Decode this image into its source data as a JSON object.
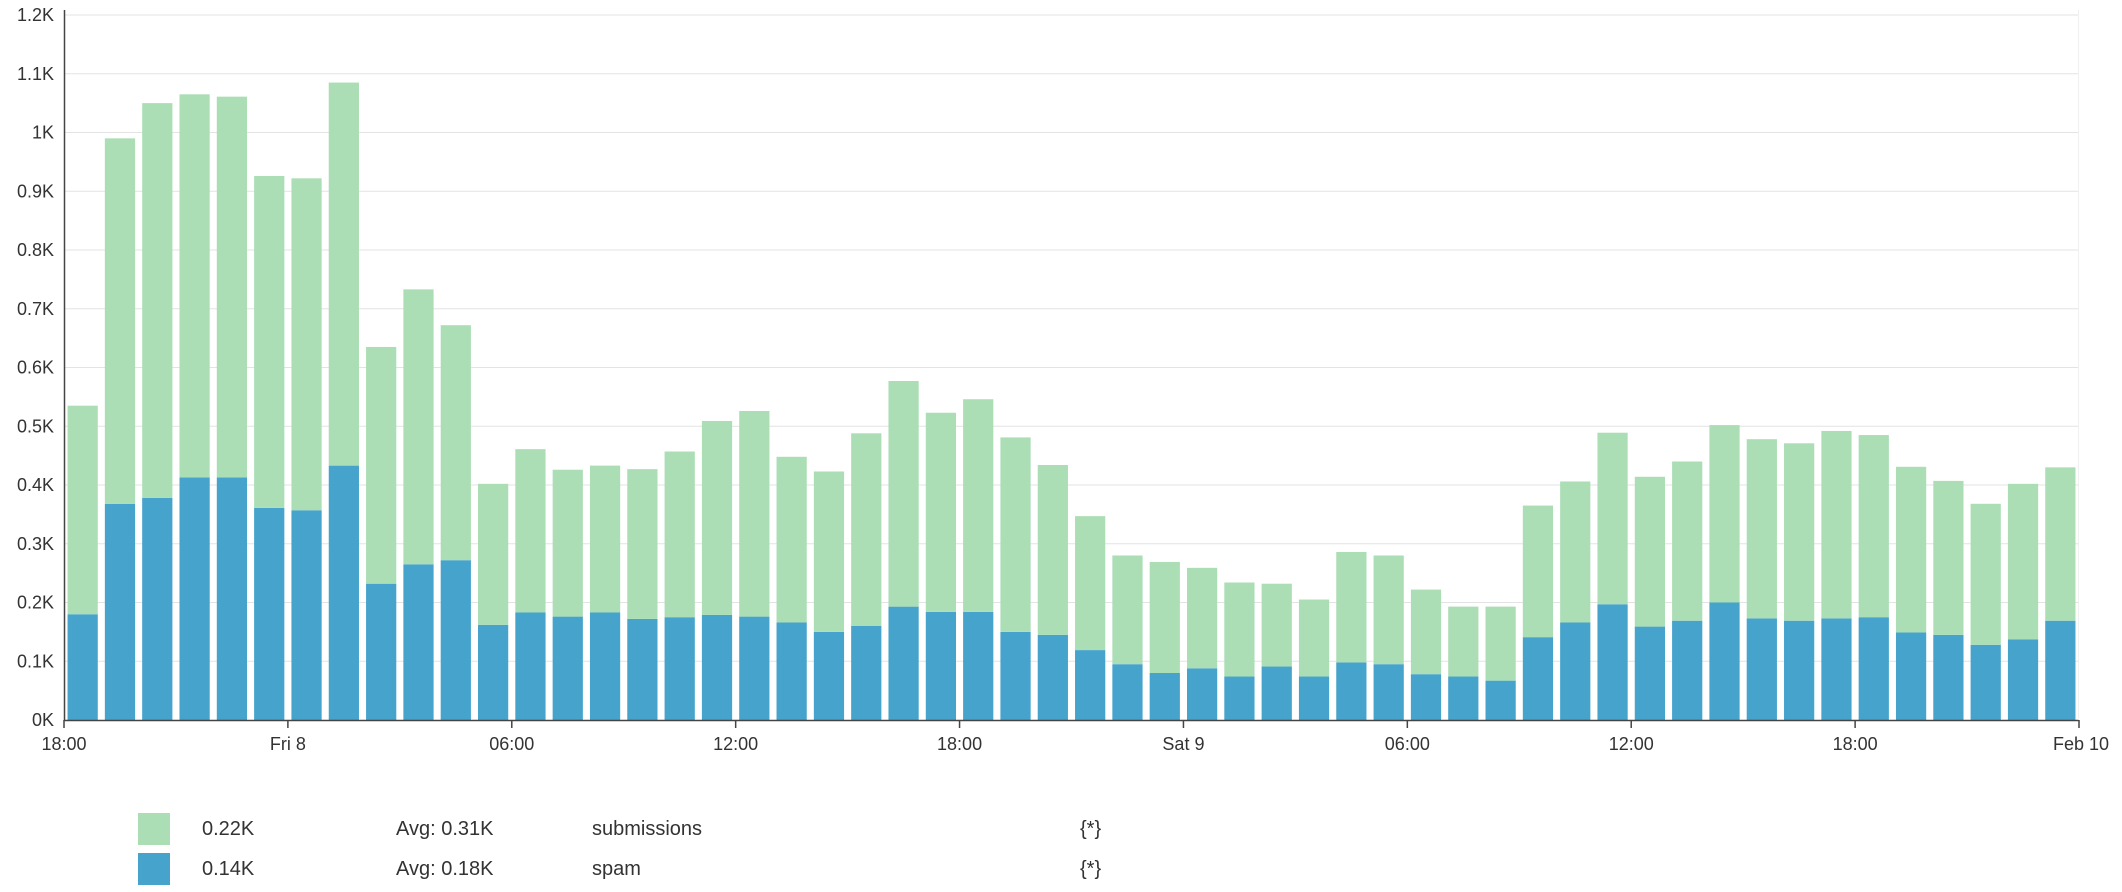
{
  "chart_data": {
    "type": "bar",
    "stacked": true,
    "grid": true,
    "ylim": [
      0,
      1200
    ],
    "y_ticks": [
      "0K",
      "0.1K",
      "0.2K",
      "0.3K",
      "0.4K",
      "0.5K",
      "0.6K",
      "0.7K",
      "0.8K",
      "0.9K",
      "1K",
      "1.1K",
      "1.2K"
    ],
    "x_ticks": [
      "18:00",
      "Fri 8",
      "06:00",
      "12:00",
      "18:00",
      "Sat 9",
      "06:00",
      "12:00",
      "18:00",
      "Feb 10"
    ],
    "series": [
      {
        "name": "spam",
        "color": "#45a3cc",
        "values": [
          180,
          368,
          378,
          413,
          413,
          361,
          357,
          433,
          232,
          265,
          272,
          162,
          183,
          176,
          183,
          172,
          175,
          179,
          176,
          166,
          150,
          160,
          193,
          184,
          184,
          150,
          145,
          119,
          95,
          80,
          88,
          74,
          91,
          74,
          98,
          95,
          78,
          74,
          67,
          141,
          166,
          197,
          159,
          169,
          200,
          173,
          169,
          173,
          175,
          149,
          145,
          128,
          137,
          169
        ]
      },
      {
        "name": "submissions",
        "color": "#abdeb5",
        "values": [
          355,
          622,
          672,
          652,
          648,
          565,
          565,
          652,
          403,
          468,
          400,
          240,
          278,
          250,
          250,
          255,
          282,
          330,
          350,
          282,
          273,
          328,
          384,
          339,
          362,
          331,
          289,
          228,
          185,
          189,
          171,
          160,
          141,
          131,
          188,
          185,
          144,
          119,
          126,
          224,
          240,
          292,
          255,
          271,
          302,
          305,
          302,
          319,
          310,
          282,
          262,
          240,
          265,
          261
        ]
      }
    ]
  },
  "legend": [
    {
      "value": "0.22K",
      "avg": "Avg: 0.31K",
      "name": "submissions",
      "scope": "{*}",
      "color": "#abdeb5"
    },
    {
      "value": "0.14K",
      "avg": "Avg: 0.18K",
      "name": "spam",
      "scope": "{*}",
      "color": "#45a3cc"
    }
  ]
}
